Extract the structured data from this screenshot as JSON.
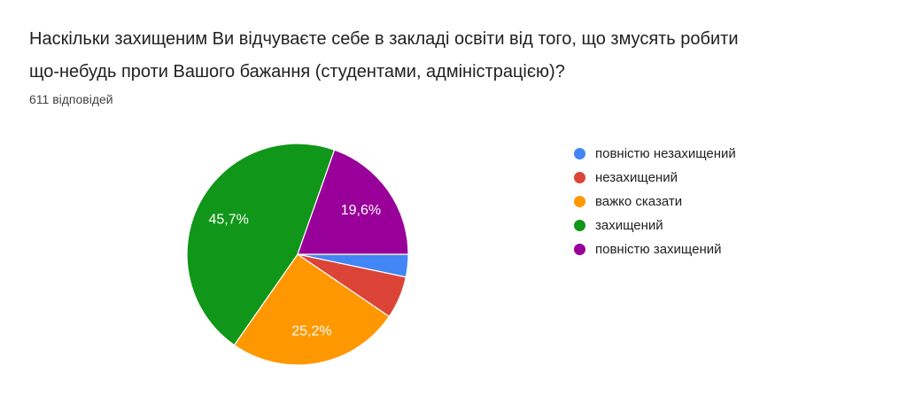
{
  "header": {
    "title": "Наскільки захищеним Ви відчуваєте себе в закладі освіти від того, що змусять робити що-небудь проти Вашого бажання (студентами, адміністрацією)?",
    "title_line1": "Наскільки захищеним Ви відчуваєте себе в закладі освіти від того, що змусять робити",
    "title_line2": "що-небудь проти Вашого бажання (студентами, адміністрацією)?",
    "responses_count": "611 відповідей"
  },
  "chart_data": {
    "type": "pie",
    "title": "Наскільки захищеним Ви відчуваєте себе в закладі освіти від того, що змусять робити що-небудь проти Вашого бажання (студентами, адміністрацією)?",
    "subtitle": "611 відповідей",
    "categories": [
      "повністю незахищений",
      "незахищений",
      "важко сказати",
      "захищений",
      "повністю захищений"
    ],
    "values": [
      3.3,
      6.2,
      25.2,
      45.7,
      19.6
    ],
    "slice_labels": [
      "",
      "",
      "25,2%",
      "45,7%",
      "19,6%"
    ],
    "colors": [
      "#4285F4",
      "#DB4437",
      "#FF9800",
      "#109618",
      "#990099"
    ],
    "slice_label_color": "#ffffff",
    "slice_border_color": "#ffffff",
    "start_angle_deg": 90,
    "label_radius_ratio": 0.7,
    "legend_position": "right",
    "grid": false
  }
}
